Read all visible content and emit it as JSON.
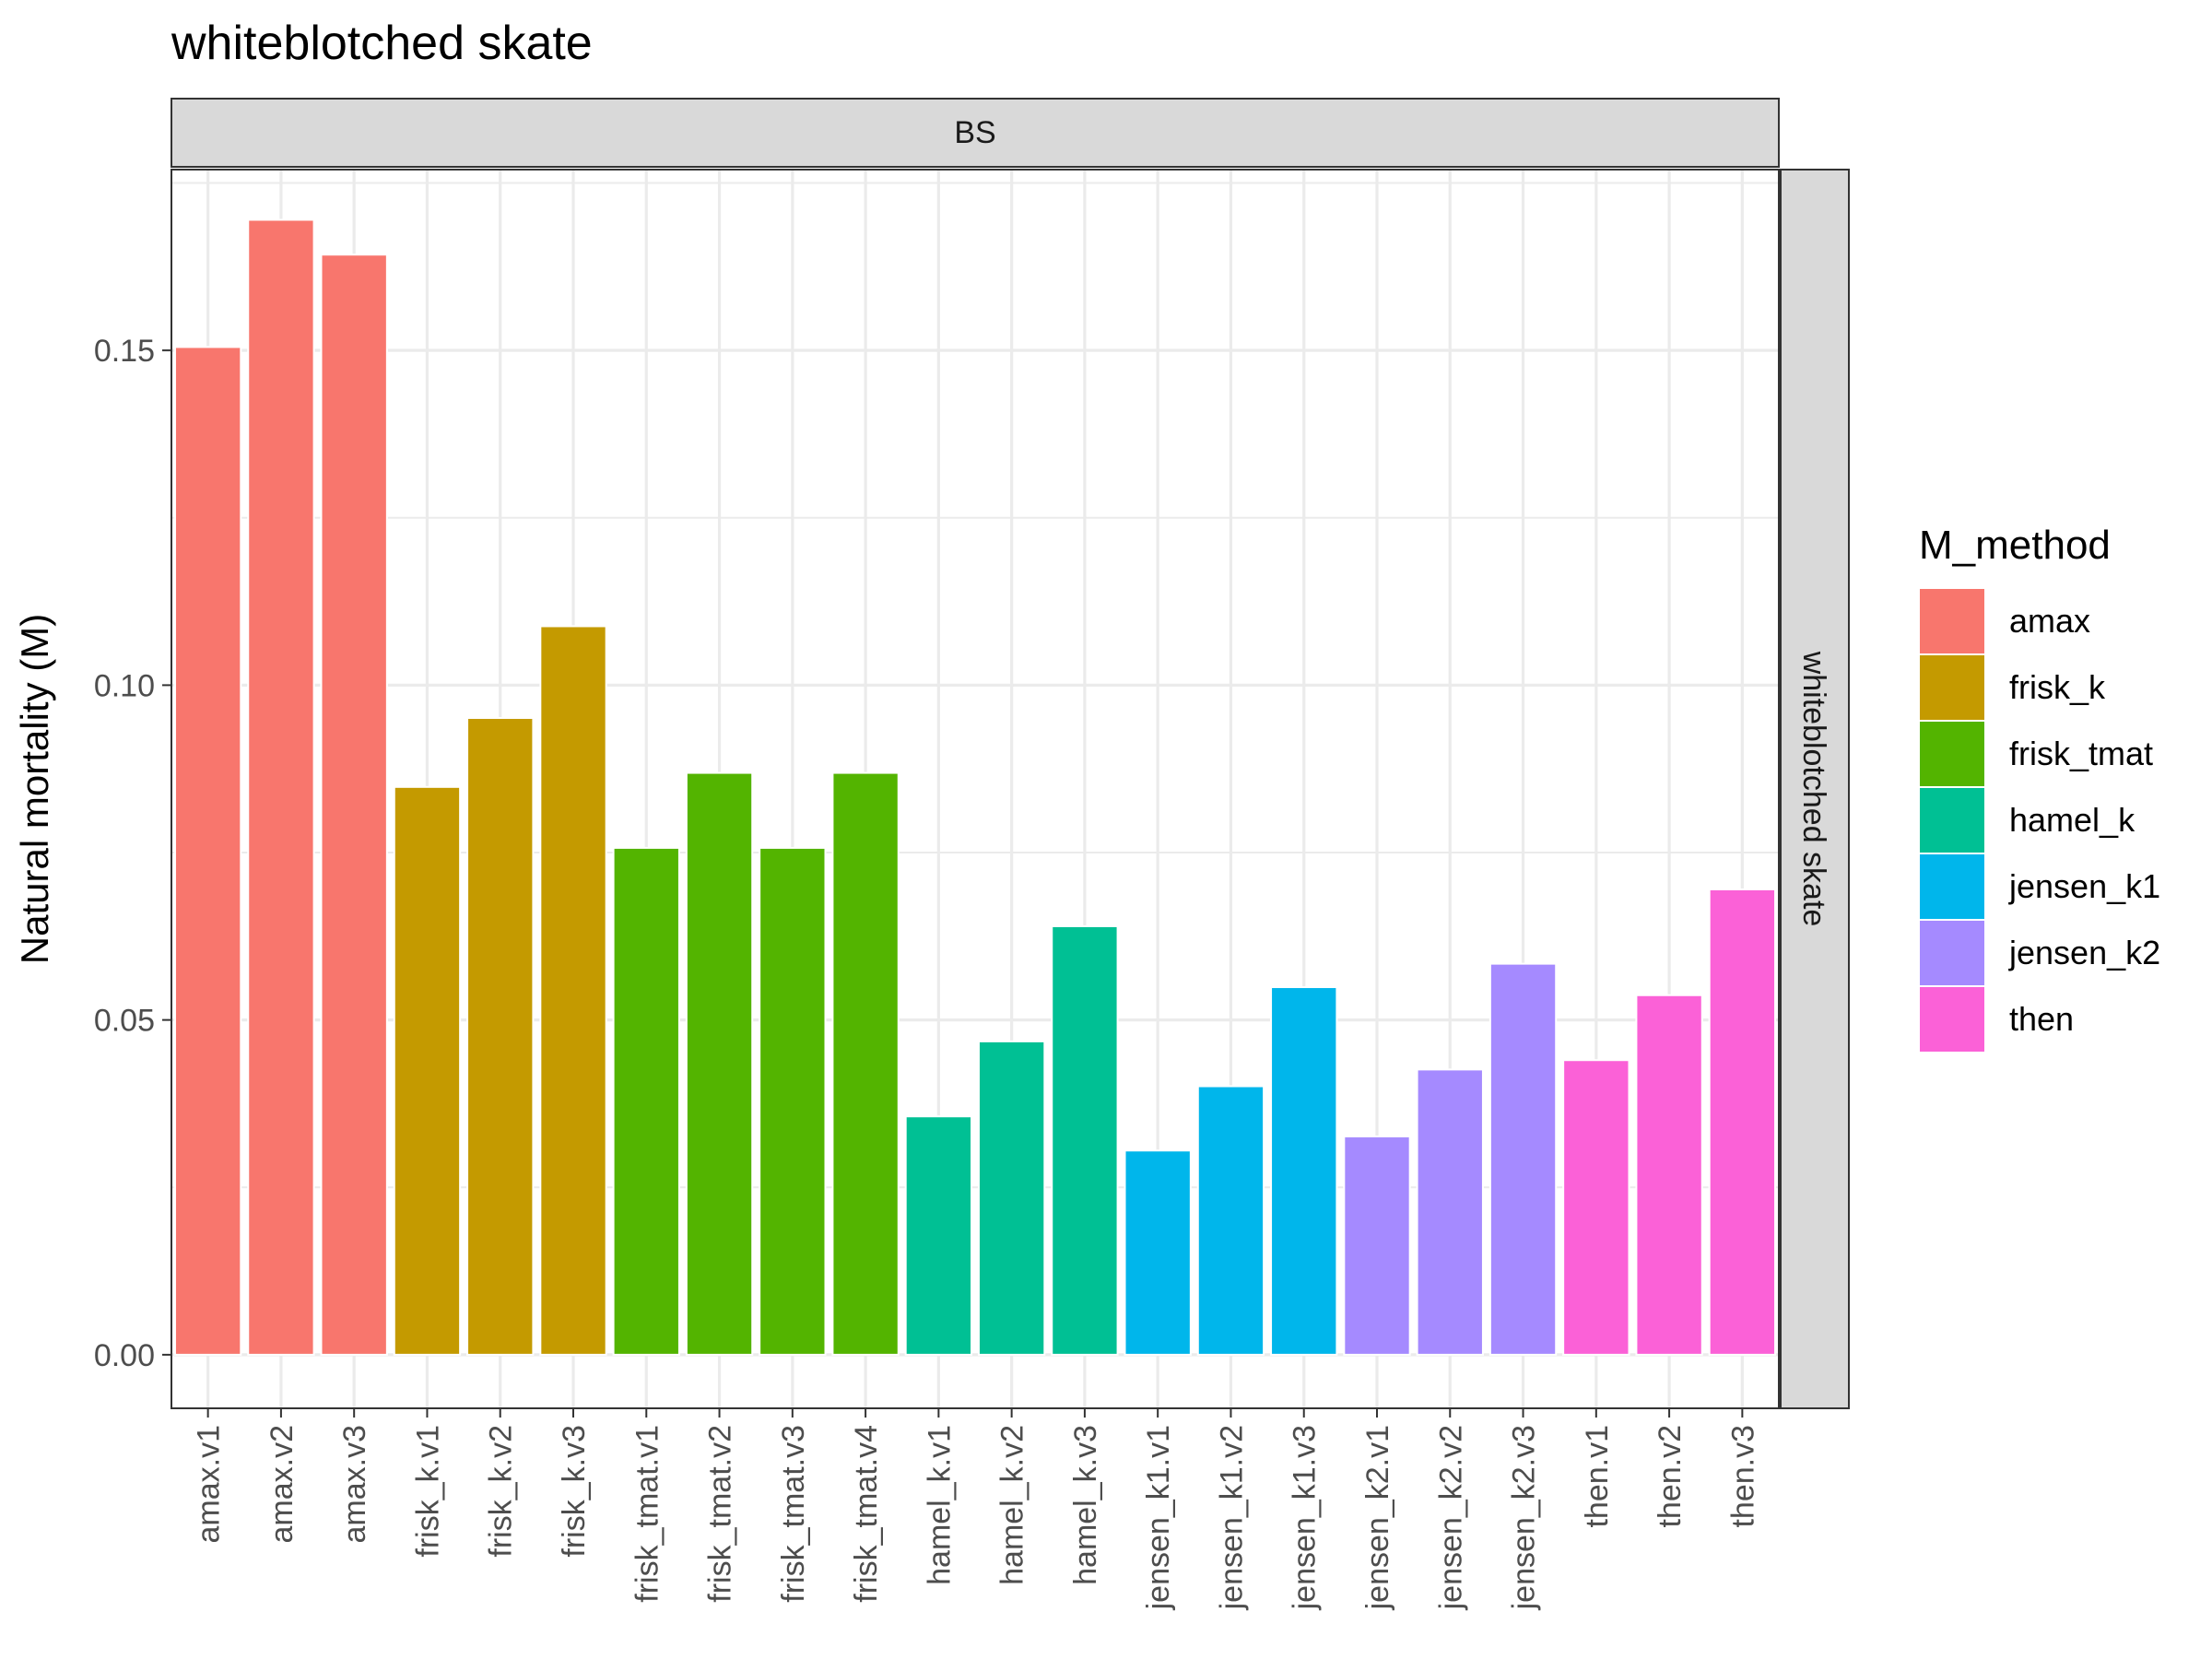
{
  "chart_data": {
    "type": "bar",
    "title": "whiteblotched skate",
    "facet_top": "BS",
    "facet_right": "whiteblotched skate",
    "xlabel": "",
    "ylabel": "Natural mortality (M)",
    "ylim": [
      -0.008,
      0.177
    ],
    "yticks": [
      0.0,
      0.05,
      0.1,
      0.15
    ],
    "ytick_labels": [
      "0.00",
      "0.05",
      "0.10",
      "0.15"
    ],
    "grid": true,
    "legend_position": "right",
    "legend": {
      "title": "M_method",
      "entries": [
        {
          "name": "amax",
          "color": "#F8766D"
        },
        {
          "name": "frisk_k",
          "color": "#C49A00"
        },
        {
          "name": "frisk_tmat",
          "color": "#53B400"
        },
        {
          "name": "hamel_k",
          "color": "#00C094"
        },
        {
          "name": "jensen_k1",
          "color": "#00B6EB"
        },
        {
          "name": "jensen_k2",
          "color": "#A58AFF"
        },
        {
          "name": "then",
          "color": "#FB61D7"
        }
      ]
    },
    "categories": [
      "amax.v1",
      "amax.v2",
      "amax.v3",
      "frisk_k.v1",
      "frisk_k.v2",
      "frisk_k.v3",
      "frisk_tmat.v1",
      "frisk_tmat.v2",
      "frisk_tmat.v3",
      "frisk_tmat.v4",
      "hamel_k.v1",
      "hamel_k.v2",
      "hamel_k.v3",
      "jensen_k1.v1",
      "jensen_k1.v2",
      "jensen_k1.v3",
      "jensen_k2.v1",
      "jensen_k2.v2",
      "jensen_k2.v3",
      "then.v1",
      "then.v2",
      "then.v3"
    ],
    "values": [
      0.1505,
      0.1695,
      0.1643,
      0.0848,
      0.0951,
      0.1088,
      0.0757,
      0.0869,
      0.0757,
      0.0869,
      0.0356,
      0.0468,
      0.064,
      0.0305,
      0.0401,
      0.0549,
      0.0326,
      0.0426,
      0.0584,
      0.044,
      0.0537,
      0.0695
    ],
    "groups": [
      "amax",
      "amax",
      "amax",
      "frisk_k",
      "frisk_k",
      "frisk_k",
      "frisk_tmat",
      "frisk_tmat",
      "frisk_tmat",
      "frisk_tmat",
      "hamel_k",
      "hamel_k",
      "hamel_k",
      "jensen_k1",
      "jensen_k1",
      "jensen_k1",
      "jensen_k2",
      "jensen_k2",
      "jensen_k2",
      "then",
      "then",
      "then"
    ]
  }
}
